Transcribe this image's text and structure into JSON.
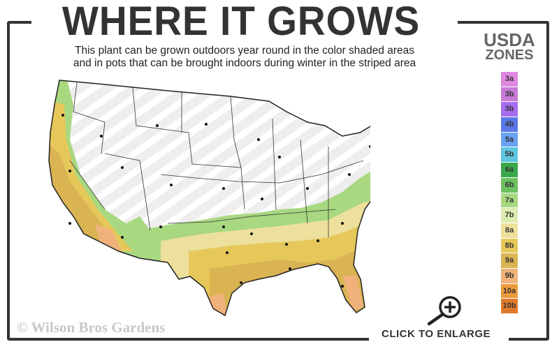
{
  "header": {
    "title": "WHERE IT GROWS",
    "subtitle_line1": "This plant can be grown outdoors year round in the color shaded areas",
    "subtitle_line2": "and in pots that can be brought indoors during winter in the striped area"
  },
  "legend": {
    "title_line1": "USDA",
    "title_line2": "ZONES",
    "zones": [
      {
        "label": "3a",
        "color": "#dd88e0"
      },
      {
        "label": "3b",
        "color": "#c77ad6"
      },
      {
        "label": "3b",
        "color": "#a66ef0"
      },
      {
        "label": "4b",
        "color": "#5a78e6"
      },
      {
        "label": "5a",
        "color": "#6aa2f2"
      },
      {
        "label": "5b",
        "color": "#5ec6e0"
      },
      {
        "label": "6a",
        "color": "#3aa84a"
      },
      {
        "label": "6b",
        "color": "#6cc060"
      },
      {
        "label": "7a",
        "color": "#a8d880"
      },
      {
        "label": "7b",
        "color": "#dcebb0"
      },
      {
        "label": "8a",
        "color": "#ece09c"
      },
      {
        "label": "8b",
        "color": "#e6c85a"
      },
      {
        "label": "9a",
        "color": "#dab452"
      },
      {
        "label": "9b",
        "color": "#f0b27a"
      },
      {
        "label": "10a",
        "color": "#ec9a3a"
      },
      {
        "label": "10b",
        "color": "#e07a2a"
      }
    ]
  },
  "map": {
    "striped_color": "#eeeeee",
    "growing_zones_shown": [
      "7a",
      "7b",
      "8a",
      "8b",
      "9a",
      "9b",
      "10a",
      "10b"
    ]
  },
  "watermark": "© Wilson Bros Gardens",
  "enlarge": {
    "label": "CLICK TO ENLARGE",
    "icon": "zoom-in-icon"
  }
}
